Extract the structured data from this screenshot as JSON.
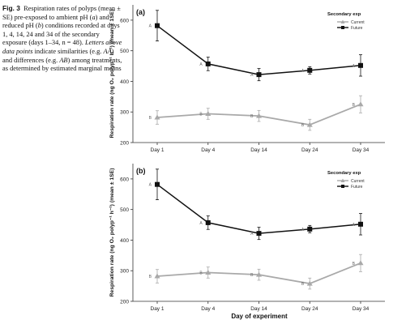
{
  "caption": {
    "label": "Fig. 3",
    "seg1": "Respiration rates of polyps (mean ± SE) pre-exposed to ambient pH (",
    "seg2": "a",
    "seg3": ") and reduced pH (",
    "seg4": "b",
    "seg5": ") conditions recorded at days 1, 4, 14, 24 and 34 of the secondary exposure (days 1–34, n = 48). ",
    "seg6": "Letters above data points",
    "seg7": " indicate similarities (e.g. ",
    "seg8": "AA",
    "seg9": ") and differences (e.g. ",
    "seg10": "AB",
    "seg11": ") among treatments, as determined by estimated marginal means"
  },
  "colors": {
    "current": "#a9a9a9",
    "future": "#111111",
    "axis": "#333333"
  },
  "xlabel": "Day of experiment",
  "chart_data": [
    {
      "type": "line",
      "panel_label": "(a)",
      "ylabel": "Respiration rate (ng O₂ polyp⁻¹ h⁻¹) (mean ± 1SE)",
      "legend_title": "Secondary exp",
      "legend_position": "top-right",
      "categories": [
        "Day 1",
        "Day 4",
        "Day 14",
        "Day 24",
        "Day 34"
      ],
      "yticks": [
        200,
        300,
        400,
        500,
        600
      ],
      "ylim": [
        200,
        650
      ],
      "series": [
        {
          "name": "Current",
          "marker": "triangle",
          "values": [
            282,
            294,
            287,
            258,
            325
          ],
          "se": [
            22,
            18,
            18,
            18,
            28
          ],
          "letters": [
            "B",
            "B",
            "B",
            "B",
            "B"
          ]
        },
        {
          "name": "Future",
          "marker": "square",
          "values": [
            582,
            457,
            422,
            436,
            452
          ],
          "se": [
            50,
            22,
            20,
            12,
            35
          ],
          "letters": [
            "A",
            "A",
            "A",
            "A",
            "A"
          ]
        }
      ]
    },
    {
      "type": "line",
      "panel_label": "(b)",
      "ylabel": "Respiration rate (ng O₂ polyp⁻¹ h⁻¹) (mean ± 1SE)",
      "legend_title": "Secondary exp",
      "legend_position": "top-right",
      "categories": [
        "Day 1",
        "Day 4",
        "Day 14",
        "Day 24",
        "Day 34"
      ],
      "yticks": [
        200,
        300,
        400,
        500,
        600
      ],
      "ylim": [
        200,
        650
      ],
      "series": [
        {
          "name": "Current",
          "marker": "triangle",
          "values": [
            282,
            294,
            287,
            258,
            325
          ],
          "se": [
            22,
            18,
            18,
            18,
            28
          ],
          "letters": [
            "B",
            "B",
            "B",
            "B",
            "B"
          ]
        },
        {
          "name": "Future",
          "marker": "square",
          "values": [
            582,
            457,
            422,
            436,
            452
          ],
          "se": [
            50,
            22,
            20,
            12,
            35
          ],
          "letters": [
            "A",
            "A",
            "A",
            "A",
            "A"
          ]
        }
      ]
    }
  ]
}
